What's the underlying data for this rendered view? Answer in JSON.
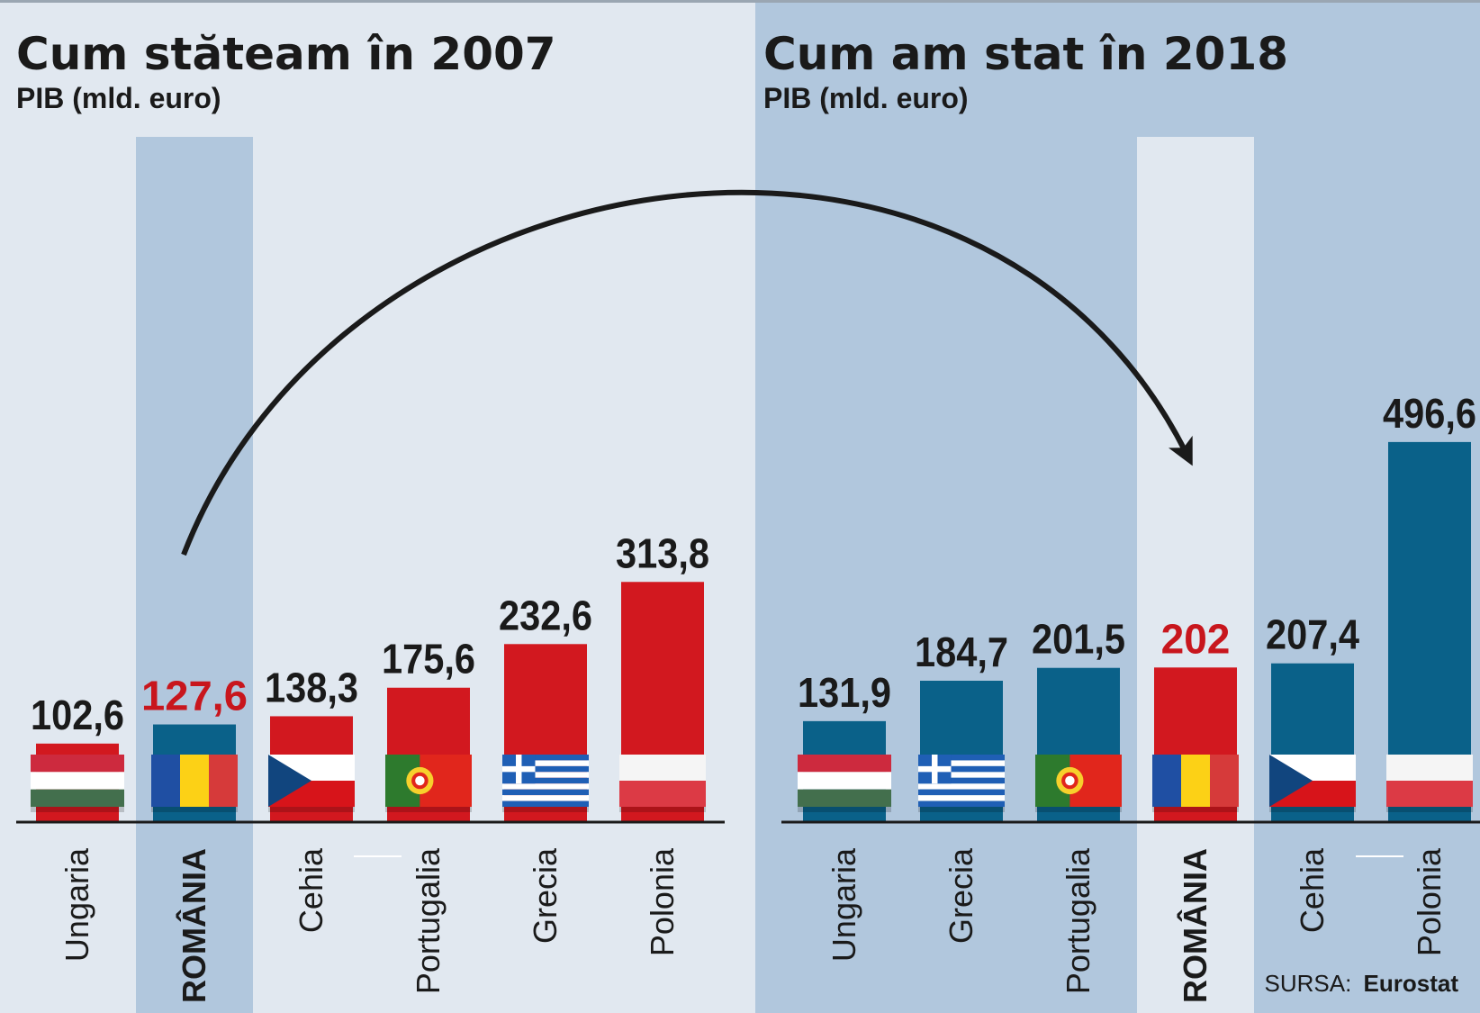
{
  "colors": {
    "red": "#d2181f",
    "blue": "#0a6189",
    "panel_left": "#e1e8f0",
    "panel_right": "#b1c7dd",
    "highlight_left": "#b1c7dd",
    "highlight_right": "#e1e8f0",
    "value_red_text": "#c8161d",
    "text": "#1a1a1a"
  },
  "chart_data": [
    {
      "type": "bar",
      "title": "Cum stăteam în 2007",
      "subtitle": "PIB (mld. euro)",
      "categories": [
        "Ungaria",
        "ROMÂNIA",
        "Cehia",
        "Portugalia",
        "Grecia",
        "Polonia"
      ],
      "values": [
        102.6,
        127.6,
        138.3,
        175.6,
        232.6,
        313.8
      ],
      "value_labels": [
        "102,6",
        "127,6",
        "138,3",
        "175,6",
        "232,6",
        "313,8"
      ],
      "bar_colors": [
        "red",
        "blue",
        "red",
        "red",
        "red",
        "red"
      ],
      "highlight": "ROMÂNIA",
      "flags": [
        "hungary-flag",
        "romania-flag",
        "czechia-flag",
        "portugal-flag",
        "greece-flag",
        "poland-flag"
      ],
      "ylim": [
        0,
        500
      ]
    },
    {
      "type": "bar",
      "title": "Cum am stat în 2018",
      "subtitle": "PIB (mld. euro)",
      "categories": [
        "Ungaria",
        "Grecia",
        "Portugalia",
        "ROMÂNIA",
        "Cehia",
        "Polonia"
      ],
      "values": [
        131.9,
        184.7,
        201.5,
        202,
        207.4,
        496.6
      ],
      "value_labels": [
        "131,9",
        "184,7",
        "201,5",
        "202",
        "207,4",
        "496,6"
      ],
      "bar_colors": [
        "blue",
        "blue",
        "blue",
        "red",
        "blue",
        "blue"
      ],
      "highlight": "ROMÂNIA",
      "flags": [
        "hungary-flag",
        "greece-flag",
        "portugal-flag",
        "romania-flag",
        "czechia-flag",
        "poland-flag"
      ],
      "ylim": [
        0,
        500
      ]
    }
  ],
  "annotation": "arrow from România 2007 to România 2018",
  "source": {
    "label": "SURSA:",
    "name": "Eurostat"
  }
}
